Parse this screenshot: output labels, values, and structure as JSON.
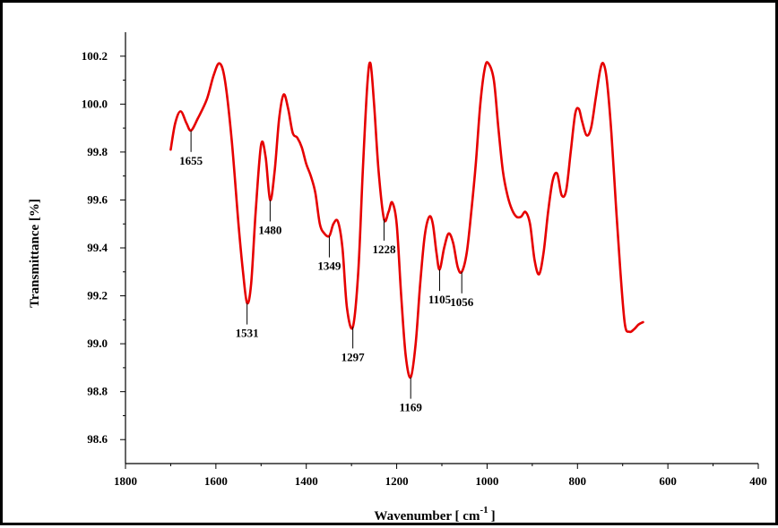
{
  "chart_data": {
    "type": "line",
    "title": "",
    "xlabel": "Wavenumber [ cm",
    "xlabel_sup": "-1",
    "xlabel_suffix": "]",
    "ylabel": "Transmittance [%]",
    "xlim": [
      1800,
      400
    ],
    "ylim": [
      98.5,
      100.3
    ],
    "x_reversed": true,
    "grid": false,
    "line_color": "#e60000",
    "x_ticks": [
      {
        "value": 1800,
        "label": "1800"
      },
      {
        "value": 1600,
        "label": "1600"
      },
      {
        "value": 1400,
        "label": "1400"
      },
      {
        "value": 1200,
        "label": "1200"
      },
      {
        "value": 1000,
        "label": "1000"
      },
      {
        "value": 800,
        "label": "800"
      },
      {
        "value": 600,
        "label": "600"
      },
      {
        "value": 400,
        "label": "400"
      }
    ],
    "y_ticks": [
      {
        "value": 98.6,
        "label": "98.6"
      },
      {
        "value": 98.8,
        "label": "98.8"
      },
      {
        "value": 99.0,
        "label": "99.0"
      },
      {
        "value": 99.2,
        "label": "99.2"
      },
      {
        "value": 99.4,
        "label": "99.4"
      },
      {
        "value": 99.6,
        "label": "99.6"
      },
      {
        "value": 99.8,
        "label": "99.8"
      },
      {
        "value": 100.0,
        "label": "100.0"
      },
      {
        "value": 100.2,
        "label": "100.2"
      }
    ],
    "series": [
      {
        "x": [
          1700,
          1690,
          1678,
          1665,
          1655,
          1640,
          1620,
          1605,
          1592,
          1580,
          1565,
          1550,
          1540,
          1531,
          1522,
          1512,
          1500,
          1490,
          1480,
          1470,
          1460,
          1450,
          1440,
          1430,
          1420,
          1410,
          1400,
          1390,
          1380,
          1370,
          1360,
          1349,
          1340,
          1330,
          1320,
          1310,
          1297,
          1285,
          1275,
          1265,
          1258,
          1250,
          1240,
          1228,
          1218,
          1210,
          1200,
          1190,
          1180,
          1169,
          1158,
          1148,
          1138,
          1128,
          1120,
          1112,
          1105,
          1095,
          1085,
          1075,
          1065,
          1056,
          1045,
          1035,
          1025,
          1015,
          1005,
          997,
          985,
          975,
          965,
          955,
          945,
          935,
          925,
          915,
          905,
          895,
          885,
          875,
          865,
          855,
          845,
          835,
          825,
          815,
          805,
          797,
          790,
          780,
          770,
          760,
          750,
          743,
          735,
          725,
          715,
          705,
          695,
          685,
          675,
          665,
          655
        ],
        "y": [
          99.81,
          99.92,
          99.97,
          99.92,
          99.89,
          99.94,
          100.02,
          100.12,
          100.17,
          100.1,
          99.85,
          99.5,
          99.3,
          99.17,
          99.25,
          99.55,
          99.83,
          99.78,
          99.6,
          99.72,
          99.94,
          100.04,
          99.98,
          99.88,
          99.86,
          99.82,
          99.75,
          99.7,
          99.63,
          99.5,
          99.46,
          99.45,
          99.5,
          99.51,
          99.4,
          99.15,
          99.07,
          99.3,
          99.72,
          100.08,
          100.17,
          100.0,
          99.72,
          99.52,
          99.55,
          99.59,
          99.5,
          99.2,
          98.95,
          98.86,
          99.0,
          99.25,
          99.45,
          99.53,
          99.5,
          99.38,
          99.31,
          99.4,
          99.46,
          99.42,
          99.32,
          99.3,
          99.38,
          99.55,
          99.75,
          100.0,
          100.15,
          100.17,
          100.1,
          99.9,
          99.72,
          99.62,
          99.56,
          99.53,
          99.53,
          99.55,
          99.5,
          99.35,
          99.29,
          99.38,
          99.55,
          99.68,
          99.71,
          99.62,
          99.64,
          99.8,
          99.96,
          99.98,
          99.93,
          99.87,
          99.9,
          100.02,
          100.14,
          100.17,
          100.1,
          99.88,
          99.58,
          99.3,
          99.08,
          99.05,
          99.06,
          99.08,
          99.09
        ]
      }
    ],
    "peak_labels": [
      {
        "x": 1655,
        "y": 99.89,
        "text": "1655",
        "position": "below"
      },
      {
        "x": 1531,
        "y": 99.17,
        "text": "1531",
        "position": "below"
      },
      {
        "x": 1480,
        "y": 99.6,
        "text": "1480",
        "position": "below"
      },
      {
        "x": 1349,
        "y": 99.45,
        "text": "1349",
        "position": "below"
      },
      {
        "x": 1297,
        "y": 99.07,
        "text": "1297",
        "position": "below"
      },
      {
        "x": 1228,
        "y": 99.52,
        "text": "1228",
        "position": "below"
      },
      {
        "x": 1169,
        "y": 98.86,
        "text": "1169",
        "position": "below"
      },
      {
        "x": 1105,
        "y": 99.31,
        "text": "1105",
        "position": "below"
      },
      {
        "x": 1056,
        "y": 99.3,
        "text": "1056",
        "position": "below"
      }
    ]
  }
}
